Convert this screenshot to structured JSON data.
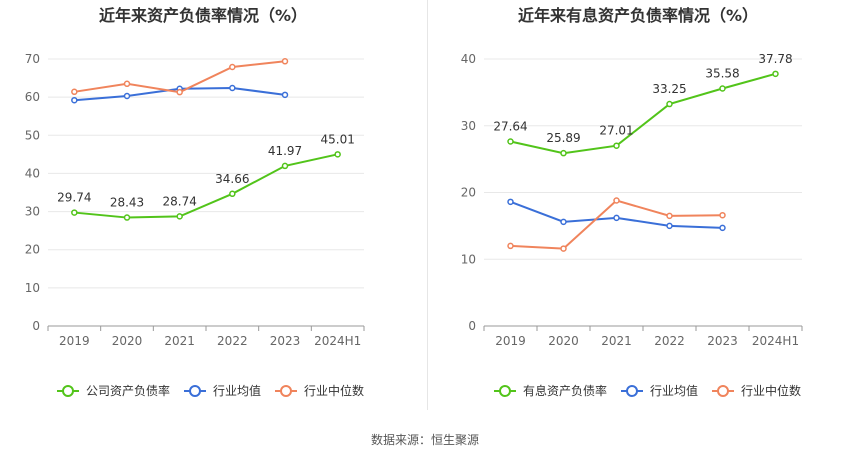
{
  "chart_data": [
    {
      "type": "line",
      "title": "近年来资产负债率情况（%）",
      "categories": [
        "2019",
        "2020",
        "2021",
        "2022",
        "2023",
        "2024H1"
      ],
      "ylim": [
        0,
        70
      ],
      "yticks": [
        0,
        10,
        20,
        30,
        40,
        50,
        60,
        70
      ],
      "grid": true,
      "legend_position": "bottom",
      "series": [
        {
          "name": "公司资产负债率",
          "color": "#52c41a",
          "labels": true,
          "values": [
            29.74,
            28.43,
            28.74,
            34.66,
            41.97,
            45.01
          ]
        },
        {
          "name": "行业均值",
          "color": "#3a6fd8",
          "labels": false,
          "values": [
            59.2,
            60.3,
            62.2,
            62.4,
            60.6,
            null
          ]
        },
        {
          "name": "行业中位数",
          "color": "#f0845c",
          "labels": false,
          "values": [
            61.4,
            63.5,
            61.3,
            67.9,
            69.4,
            null
          ]
        }
      ]
    },
    {
      "type": "line",
      "title": "近年来有息资产负债率情况（%）",
      "categories": [
        "2019",
        "2020",
        "2021",
        "2022",
        "2023",
        "2024H1"
      ],
      "ylim": [
        0,
        40
      ],
      "yticks": [
        0,
        10,
        20,
        30,
        40
      ],
      "grid": true,
      "legend_position": "bottom",
      "series": [
        {
          "name": "有息资产负债率",
          "color": "#52c41a",
          "labels": true,
          "values": [
            27.64,
            25.89,
            27.01,
            33.25,
            35.58,
            37.78
          ]
        },
        {
          "name": "行业均值",
          "color": "#3a6fd8",
          "labels": false,
          "values": [
            18.6,
            15.6,
            16.2,
            15.0,
            14.7,
            null
          ]
        },
        {
          "name": "行业中位数",
          "color": "#f0845c",
          "labels": false,
          "values": [
            12.0,
            11.6,
            18.8,
            16.5,
            16.6,
            null
          ]
        }
      ]
    }
  ],
  "footer": {
    "source": "数据来源：恒生聚源"
  }
}
